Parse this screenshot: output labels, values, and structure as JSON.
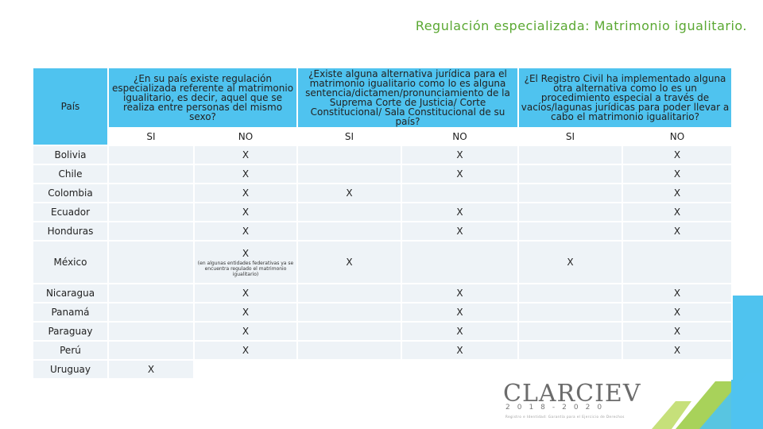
{
  "title": "Regulación especializada: Matrimonio igualitario.",
  "headers": {
    "country": "País",
    "q1": "¿En su país existe regulación especializada referente al matrimonio igualitario, es decir, aquel que se realiza entre personas del mismo sexo?",
    "q2": "¿Existe alguna alternativa jurídica para el matrimonio igualitario como lo es alguna sentencia/dictamen/pronunciamiento de la Suprema Corte de Justicia/ Corte Constitucional/ Sala Constitucional de su país?",
    "q3": "¿El Registro Civil ha implementado alguna otra alternativa como lo es un procedimiento especial a través de vacíos/lagunas jurídicas para poder llevar a cabo el matrimonio igualitario?"
  },
  "subheaders": [
    "SI",
    "NO",
    "SI",
    "NO",
    "SI",
    "NO"
  ],
  "rows": [
    {
      "country": "Bolivia",
      "cells": [
        "",
        "X",
        "",
        "X",
        "",
        "X"
      ]
    },
    {
      "country": "Chile",
      "cells": [
        "",
        "X",
        "",
        "X",
        "",
        "X"
      ]
    },
    {
      "country": "Colombia",
      "cells": [
        "",
        "X",
        "X",
        "",
        "",
        "X"
      ]
    },
    {
      "country": "Ecuador",
      "cells": [
        "",
        "X",
        "",
        "X",
        "",
        "X"
      ]
    },
    {
      "country": "Honduras",
      "cells": [
        "",
        "X",
        "",
        "X",
        "",
        "X"
      ]
    },
    {
      "country": "México",
      "cells": [
        "",
        "X",
        "X",
        "",
        "X",
        ""
      ],
      "note": "(en algunas entidades federativas ya se encuentra regulado el matrimonio igualitario)"
    },
    {
      "country": "Nicaragua",
      "cells": [
        "",
        "X",
        "",
        "X",
        "",
        "X"
      ]
    },
    {
      "country": "Panamá",
      "cells": [
        "",
        "X",
        "",
        "X",
        "",
        "X"
      ]
    },
    {
      "country": "Paraguay",
      "cells": [
        "",
        "X",
        "",
        "X",
        "",
        "X"
      ]
    },
    {
      "country": "Perú",
      "cells": [
        "",
        "X",
        "",
        "X",
        "",
        "X"
      ]
    },
    {
      "country": "Uruguay",
      "cells": [
        "X",
        "",
        "",
        "",
        "",
        ""
      ]
    }
  ],
  "logo": {
    "name": "CLARCIEV",
    "years": "2018-2020",
    "subtitle": "Registro e Identidad: Garantía para el Ejercicio de Derechos"
  },
  "colors": {
    "header": "#4fc3ef",
    "title": "#5aa832",
    "row": "#eef3f7"
  }
}
